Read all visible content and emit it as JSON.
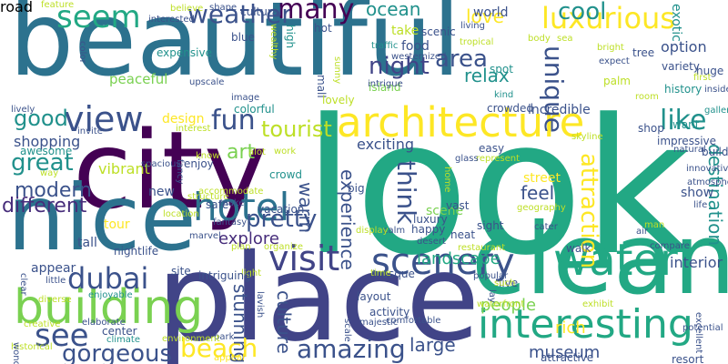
{
  "palette": {
    "teal": "#21918c",
    "blueTeal": "#2c728e",
    "green": "#22a884",
    "lime": "#7ad151",
    "yellow": "#fde725",
    "olive": "#bddf26",
    "indigo": "#3b528b",
    "navy": "#414487",
    "purple": "#440154",
    "plum": "#472d7b"
  },
  "words": [
    {
      "text": "beautiful",
      "color": "blueTeal"
    },
    {
      "text": "look",
      "color": "green"
    },
    {
      "text": "city",
      "color": "purple"
    },
    {
      "text": "place",
      "color": "navy"
    },
    {
      "text": "nice",
      "color": "blueTeal"
    },
    {
      "text": "clean",
      "color": "green"
    },
    {
      "text": "architecture",
      "color": "yellow"
    },
    {
      "text": "interesting",
      "color": "green"
    },
    {
      "text": "water",
      "color": "green"
    },
    {
      "text": "building",
      "color": "lime"
    },
    {
      "text": "visit",
      "color": "navy"
    },
    {
      "text": "hotel",
      "color": "blueTeal"
    },
    {
      "text": "scenery",
      "color": "indigo"
    },
    {
      "text": "view",
      "color": "indigo"
    },
    {
      "text": "seem",
      "color": "green"
    },
    {
      "text": "weather",
      "color": "indigo"
    },
    {
      "text": "luxurious",
      "color": "yellow"
    },
    {
      "text": "many",
      "color": "purple"
    },
    {
      "text": "ocean",
      "color": "teal"
    },
    {
      "text": "night",
      "color": "navy"
    },
    {
      "text": "area",
      "color": "indigo"
    },
    {
      "text": "cool",
      "color": "teal"
    },
    {
      "text": "unique",
      "color": "indigo"
    },
    {
      "text": "relax",
      "color": "teal"
    },
    {
      "text": "love",
      "color": "yellow"
    },
    {
      "text": "like",
      "color": "teal"
    },
    {
      "text": "exotic",
      "color": "teal"
    },
    {
      "text": "fun",
      "color": "indigo"
    },
    {
      "text": "good",
      "color": "teal"
    },
    {
      "text": "great",
      "color": "teal"
    },
    {
      "text": "tourist",
      "color": "olive"
    },
    {
      "text": "art",
      "color": "lime"
    },
    {
      "text": "think",
      "color": "indigo"
    },
    {
      "text": "attraction",
      "color": "yellow"
    },
    {
      "text": "modern",
      "color": "indigo"
    },
    {
      "text": "different",
      "color": "plum"
    },
    {
      "text": "pretty",
      "color": "indigo"
    },
    {
      "text": "warm",
      "color": "indigo"
    },
    {
      "text": "experience",
      "color": "indigo"
    },
    {
      "text": "feel",
      "color": "indigo"
    },
    {
      "text": "destination",
      "color": "teal"
    },
    {
      "text": "dubai",
      "color": "indigo"
    },
    {
      "text": "see",
      "color": "indigo"
    },
    {
      "text": "gorgeous",
      "color": "indigo"
    },
    {
      "text": "amazing",
      "color": "indigo"
    },
    {
      "text": "beach",
      "color": "yellow"
    },
    {
      "text": "landscape",
      "color": "green"
    },
    {
      "text": "large",
      "color": "indigo"
    },
    {
      "text": "people",
      "color": "lime"
    },
    {
      "text": "museum",
      "color": "indigo"
    },
    {
      "text": "culture",
      "color": "indigo"
    },
    {
      "text": "stunning",
      "color": "indigo"
    },
    {
      "text": "explore",
      "color": "plum"
    },
    {
      "text": "shopping",
      "color": "indigo"
    },
    {
      "text": "awesome",
      "color": "teal"
    },
    {
      "text": "vibrant",
      "color": "olive"
    },
    {
      "text": "design",
      "color": "yellow"
    },
    {
      "text": "interior",
      "color": "indigo"
    },
    {
      "text": "show",
      "color": "indigo"
    },
    {
      "text": "rich",
      "color": "yellow"
    },
    {
      "text": "exciting",
      "color": "indigo"
    },
    {
      "text": "incredible",
      "color": "indigo"
    },
    {
      "text": "option",
      "color": "indigo"
    },
    {
      "text": "history",
      "color": "teal"
    },
    {
      "text": "variety",
      "color": "indigo"
    },
    {
      "text": "peaceful",
      "color": "lime"
    },
    {
      "text": "expensive",
      "color": "teal"
    },
    {
      "text": "food",
      "color": "indigo"
    },
    {
      "text": "crowded",
      "color": "indigo"
    },
    {
      "text": "colorful",
      "color": "teal"
    },
    {
      "text": "spot",
      "color": "teal"
    },
    {
      "text": "island",
      "color": "lime"
    },
    {
      "text": "street",
      "color": "yellow"
    },
    {
      "text": "scene",
      "color": "lime"
    },
    {
      "text": "luxury",
      "color": "indigo"
    },
    {
      "text": "vast",
      "color": "indigo"
    },
    {
      "text": "impressive",
      "color": "indigo"
    },
    {
      "text": "sight",
      "color": "indigo"
    },
    {
      "text": "walk",
      "color": "indigo"
    },
    {
      "text": "neat",
      "color": "indigo"
    },
    {
      "text": "vacation",
      "color": "indigo"
    },
    {
      "text": "crowd",
      "color": "teal"
    },
    {
      "text": "big",
      "color": "indigo"
    },
    {
      "text": "enjoy",
      "color": "indigo"
    },
    {
      "text": "new",
      "color": "indigo"
    },
    {
      "text": "safe",
      "color": "indigo"
    },
    {
      "text": "tall",
      "color": "indigo"
    },
    {
      "text": "nightlife",
      "color": "indigo"
    },
    {
      "text": "tour",
      "color": "yellow"
    },
    {
      "text": "appear",
      "color": "indigo"
    },
    {
      "text": "site",
      "color": "indigo"
    },
    {
      "text": "mosque",
      "color": "indigo"
    },
    {
      "text": "live",
      "color": "indigo"
    },
    {
      "text": "layout",
      "color": "indigo"
    },
    {
      "text": "activity",
      "color": "indigo"
    },
    {
      "text": "center",
      "color": "indigo"
    },
    {
      "text": "attractive",
      "color": "indigo"
    },
    {
      "text": "resort",
      "color": "indigo"
    },
    {
      "text": "park",
      "color": "indigo"
    },
    {
      "text": "happy",
      "color": "indigo"
    },
    {
      "text": "easy",
      "color": "indigo"
    },
    {
      "text": "world",
      "color": "indigo"
    },
    {
      "text": "scenic",
      "color": "indigo"
    },
    {
      "text": "take",
      "color": "olive"
    },
    {
      "text": "mall",
      "color": "indigo"
    },
    {
      "text": "sunny",
      "color": "olive"
    },
    {
      "text": "high",
      "color": "teal"
    },
    {
      "text": "blue",
      "color": "indigo"
    },
    {
      "text": "cultural",
      "color": "indigo"
    },
    {
      "text": "hot",
      "color": "indigo"
    },
    {
      "text": "upscale",
      "color": "indigo"
    },
    {
      "text": "image",
      "color": "indigo"
    },
    {
      "text": "shop",
      "color": "indigo"
    },
    {
      "text": "build",
      "color": "indigo"
    },
    {
      "text": "want",
      "color": "teal"
    },
    {
      "text": "gallery",
      "color": "teal"
    },
    {
      "text": "tree",
      "color": "indigo"
    },
    {
      "text": "expect",
      "color": "indigo"
    },
    {
      "text": "huge",
      "color": "indigo"
    },
    {
      "text": "first",
      "color": "olive"
    },
    {
      "text": "inside",
      "color": "indigo"
    },
    {
      "text": "room",
      "color": "olive"
    },
    {
      "text": "kind",
      "color": "teal"
    },
    {
      "text": "palm",
      "color": "olive"
    },
    {
      "text": "traffic",
      "color": "teal"
    },
    {
      "text": "westernized",
      "color": "indigo"
    },
    {
      "text": "tropical",
      "color": "olive"
    },
    {
      "text": "living",
      "color": "indigo"
    },
    {
      "text": "body",
      "color": "olive"
    },
    {
      "text": "sea",
      "color": "olive"
    },
    {
      "text": "bright",
      "color": "olive"
    },
    {
      "text": "intrigue",
      "color": "indigo"
    },
    {
      "text": "lovely",
      "color": "olive"
    },
    {
      "text": "wealthy",
      "color": "olive"
    },
    {
      "text": "natural",
      "color": "indigo"
    },
    {
      "text": "skyline",
      "color": "olive"
    },
    {
      "text": "atmosphere",
      "color": "indigo"
    },
    {
      "text": "innovative",
      "color": "indigo"
    },
    {
      "text": "life",
      "color": "indigo"
    },
    {
      "text": "man",
      "color": "olive"
    },
    {
      "text": "air",
      "color": "indigo"
    },
    {
      "text": "compare",
      "color": "indigo"
    },
    {
      "text": "potential",
      "color": "indigo"
    },
    {
      "text": "excellent",
      "color": "indigo"
    },
    {
      "text": "exhibit",
      "color": "olive"
    },
    {
      "text": "cater",
      "color": "indigo"
    },
    {
      "text": "restaurant",
      "color": "olive"
    },
    {
      "text": "popular",
      "color": "indigo"
    },
    {
      "text": "such",
      "color": "olive"
    },
    {
      "text": "comfortable",
      "color": "indigo"
    },
    {
      "text": "waterfront",
      "color": "olive"
    },
    {
      "text": "geography",
      "color": "olive"
    },
    {
      "text": "calm",
      "color": "indigo"
    },
    {
      "text": "desert",
      "color": "indigo"
    },
    {
      "text": "display",
      "color": "olive"
    },
    {
      "text": "represent",
      "color": "olive"
    },
    {
      "text": "glass",
      "color": "indigo"
    },
    {
      "text": "home",
      "color": "olive"
    },
    {
      "text": "time",
      "color": "olive"
    },
    {
      "text": "lay",
      "color": "indigo"
    },
    {
      "text": "majestic",
      "color": "indigo"
    },
    {
      "text": "scale",
      "color": "indigo"
    },
    {
      "text": "lavish",
      "color": "indigo"
    },
    {
      "text": "light",
      "color": "olive"
    },
    {
      "text": "organize",
      "color": "olive"
    },
    {
      "text": "plan",
      "color": "olive"
    },
    {
      "text": "fantasy",
      "color": "indigo"
    },
    {
      "text": "marvel",
      "color": "indigo"
    },
    {
      "text": "intriguing",
      "color": "indigo"
    },
    {
      "text": "appeal",
      "color": "yellow"
    },
    {
      "text": "environment",
      "color": "olive"
    },
    {
      "text": "climate",
      "color": "teal"
    },
    {
      "text": "enjoyable",
      "color": "teal"
    },
    {
      "text": "diverse",
      "color": "olive"
    },
    {
      "text": "little",
      "color": "indigo"
    },
    {
      "text": "elaborate",
      "color": "indigo"
    },
    {
      "text": "creative",
      "color": "olive"
    },
    {
      "text": "historical",
      "color": "olive"
    },
    {
      "text": "wonder",
      "color": "indigo"
    },
    {
      "text": "clear",
      "color": "indigo"
    },
    {
      "text": "location",
      "color": "olive"
    },
    {
      "text": "way",
      "color": "olive"
    },
    {
      "text": "invite",
      "color": "indigo"
    },
    {
      "text": "interest",
      "color": "olive"
    },
    {
      "text": "spacious",
      "color": "indigo"
    },
    {
      "text": "structure",
      "color": "olive"
    },
    {
      "text": "accommodate",
      "color": "olive"
    },
    {
      "text": "make",
      "color": "indigo"
    },
    {
      "text": "fancy",
      "color": "indigo"
    },
    {
      "text": "know",
      "color": "olive"
    },
    {
      "text": "alot",
      "color": "olive"
    },
    {
      "text": "work",
      "color": "olive"
    },
    {
      "text": "lively",
      "color": "indigo"
    },
    {
      "text": "color",
      "color": "indigo"
    },
    {
      "text": "feature",
      "color": "olive"
    },
    {
      "text": "believe",
      "color": "olive"
    },
    {
      "text": "interested",
      "color": "indigo"
    },
    {
      "text": "shape",
      "color": "indigo"
    },
    {
      "text": "road",
      "color": "indigo"
    }
  ]
}
